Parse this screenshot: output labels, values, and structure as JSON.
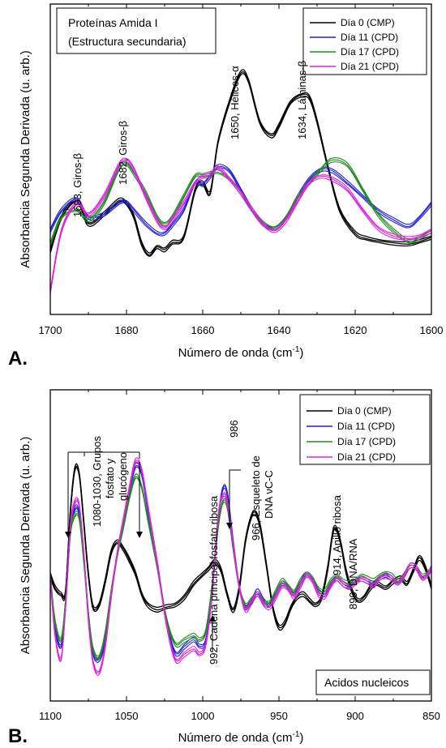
{
  "chart_data": [
    {
      "type": "line",
      "panel": "A.",
      "title_box": [
        "Proteínas Amida I",
        "(Estructura secundaria)"
      ],
      "xlabel": "Número de onda (cm",
      "xlabel_sup": "-1",
      "xlabel_end": ")",
      "ylabel": "Absorbancia Segunda Derivada (u. arb.)",
      "xlim": [
        1700,
        1600
      ],
      "xticks": [
        1700,
        1680,
        1660,
        1640,
        1620,
        1600
      ],
      "ylim": [
        -1,
        1
      ],
      "legend": [
        {
          "name": "Día  0  (CMP)",
          "color": "#000000"
        },
        {
          "name": "Día 11  (CPD)",
          "color": "#1f1fd6"
        },
        {
          "name": "Día 17  (CPD)",
          "color": "#1f8a1f"
        },
        {
          "name": "Día 21  (CPD)",
          "color": "#e020e0"
        }
      ],
      "annotations": [
        {
          "text": "1693, Giros-β",
          "x": 1693,
          "y": 0.1
        },
        {
          "text": "1682, Giros-β",
          "x": 1680,
          "y": 0.4
        },
        {
          "text": "1650, Hélices-α",
          "x": 1650,
          "y": 0.95
        },
        {
          "text": "1634, Láminas-β",
          "x": 1632,
          "y": 0.9
        }
      ],
      "series": [
        {
          "color": "#000000",
          "replicates": 3,
          "x": [
            1700,
            1697,
            1693,
            1690,
            1686,
            1682,
            1680,
            1678,
            1676,
            1674,
            1672,
            1670,
            1668,
            1665,
            1662,
            1660,
            1658,
            1656,
            1653,
            1650,
            1648,
            1645,
            1642,
            1640,
            1637,
            1634,
            1632,
            1630,
            1627,
            1624,
            1620,
            1617,
            1613,
            1610,
            1606,
            1603,
            1600
          ],
          "y": [
            -0.55,
            -0.3,
            -0.18,
            -0.35,
            -0.28,
            -0.18,
            -0.2,
            -0.3,
            -0.5,
            -0.58,
            -0.52,
            -0.54,
            -0.49,
            -0.45,
            -0.1,
            -0.05,
            -0.12,
            0.25,
            0.55,
            0.76,
            0.7,
            0.4,
            0.3,
            0.37,
            0.54,
            0.6,
            0.58,
            0.4,
            0.05,
            -0.25,
            -0.42,
            -0.46,
            -0.48,
            -0.49,
            -0.5,
            -0.48,
            -0.45
          ]
        },
        {
          "color": "#1f1fd6",
          "replicates": 3,
          "x": [
            1700,
            1697,
            1693,
            1690,
            1686,
            1682,
            1680,
            1678,
            1675,
            1672,
            1670,
            1668,
            1665,
            1662,
            1660,
            1658,
            1656,
            1653,
            1650,
            1647,
            1644,
            1641,
            1638,
            1635,
            1632,
            1629,
            1626,
            1622,
            1618,
            1614,
            1610,
            1606,
            1603,
            1600
          ],
          "y": [
            -0.4,
            -0.25,
            -0.17,
            -0.3,
            -0.28,
            -0.2,
            -0.19,
            -0.25,
            -0.35,
            -0.42,
            -0.42,
            -0.36,
            -0.25,
            -0.05,
            -0.06,
            0.0,
            0.07,
            0.04,
            -0.1,
            -0.25,
            -0.36,
            -0.38,
            -0.3,
            -0.15,
            -0.02,
            0.05,
            0.04,
            -0.05,
            -0.15,
            -0.25,
            -0.32,
            -0.37,
            -0.3,
            -0.2
          ]
        },
        {
          "color": "#1f8a1f",
          "replicates": 3,
          "x": [
            1700,
            1697,
            1693,
            1690,
            1686,
            1682,
            1680,
            1678,
            1675,
            1672,
            1670,
            1668,
            1665,
            1662,
            1660,
            1658,
            1656,
            1653,
            1650,
            1647,
            1644,
            1641,
            1638,
            1635,
            1632,
            1629,
            1626,
            1622,
            1618,
            1614,
            1610,
            1606,
            1603,
            1600
          ],
          "y": [
            -0.5,
            -0.3,
            -0.25,
            -0.32,
            -0.2,
            0.05,
            0.09,
            0.02,
            -0.12,
            -0.3,
            -0.35,
            -0.3,
            -0.15,
            0.0,
            0.01,
            0.02,
            0.03,
            -0.02,
            -0.12,
            -0.25,
            -0.35,
            -0.38,
            -0.3,
            -0.15,
            -0.05,
            0.05,
            0.12,
            0.08,
            -0.1,
            -0.28,
            -0.4,
            -0.48,
            -0.45,
            -0.4
          ]
        },
        {
          "color": "#e020e0",
          "replicates": 3,
          "x": [
            1700,
            1697,
            1693,
            1690,
            1686,
            1682,
            1680,
            1678,
            1675,
            1672,
            1670,
            1668,
            1665,
            1662,
            1660,
            1658,
            1656,
            1653,
            1650,
            1647,
            1644,
            1641,
            1638,
            1635,
            1632,
            1629,
            1626,
            1622,
            1618,
            1614,
            1610,
            1606,
            1603,
            1600
          ],
          "y": [
            -0.85,
            -0.4,
            -0.2,
            -0.28,
            -0.15,
            0.08,
            0.12,
            0.05,
            -0.15,
            -0.33,
            -0.38,
            -0.32,
            -0.2,
            -0.05,
            0.0,
            0.01,
            0.06,
            -0.02,
            -0.12,
            -0.25,
            -0.36,
            -0.4,
            -0.32,
            -0.18,
            -0.05,
            0.0,
            -0.02,
            -0.1,
            -0.25,
            -0.38,
            -0.44,
            -0.46,
            -0.44,
            -0.4
          ]
        }
      ]
    },
    {
      "type": "line",
      "panel": "B.",
      "title_box": [
        "Acidos nucleicos"
      ],
      "xlabel": "Número de onda (cm",
      "xlabel_sup": "-1",
      "xlabel_end": ")",
      "ylabel": "Absorbancia Segunda Derivada (u. arb.)",
      "xlim": [
        1100,
        850
      ],
      "xticks": [
        1100,
        1050,
        1000,
        950,
        900,
        850
      ],
      "ylim": [
        -1,
        1
      ],
      "legend": [
        {
          "name": "Día  0   (CMP)",
          "color": "#000000"
        },
        {
          "name": "Día 11   (CPD)",
          "color": "#1f1fd6"
        },
        {
          "name": "Día 17   (CPD)",
          "color": "#1f8a1f"
        },
        {
          "name": "Día 21   (CPD)",
          "color": "#e020e0"
        }
      ],
      "annotations": [
        {
          "text": "1080-1030, Grupos",
          "x": 1058
        },
        {
          "text": "fosfato y",
          "x": 1052
        },
        {
          "text": "glucógeno",
          "x": 1046
        },
        {
          "text": "992, Cadena principal fosfato ribosa",
          "x": 997
        },
        {
          "text": "986",
          "x": 985
        },
        {
          "text": "966, Esqueleto de",
          "x": 967
        },
        {
          "text": "DNA νC-C",
          "x": 960
        },
        {
          "text": "914, Anillo ribosa",
          "x": 912
        },
        {
          "text": "899, DNA/RNA",
          "x": 898
        }
      ],
      "series": [
        {
          "color": "#000000",
          "replicates": 3,
          "x": [
            1100,
            1097,
            1093,
            1090,
            1087,
            1084,
            1081,
            1078,
            1075,
            1072,
            1068,
            1064,
            1060,
            1056,
            1052,
            1048,
            1044,
            1040,
            1036,
            1030,
            1024,
            1018,
            1012,
            1006,
            1000,
            996,
            992,
            988,
            984,
            980,
            976,
            972,
            968,
            965,
            962,
            958,
            954,
            950,
            946,
            942,
            938,
            934,
            930,
            926,
            922,
            918,
            914,
            910,
            906,
            902,
            898,
            894,
            890,
            886,
            880,
            875,
            870,
            866,
            862,
            858,
            854,
            850
          ],
          "y": [
            -0.05,
            -0.15,
            -0.2,
            -0.18,
            0.4,
            0.75,
            0.72,
            0.35,
            -0.05,
            -0.3,
            -0.28,
            -0.1,
            0.12,
            0.2,
            0.15,
            0.06,
            -0.05,
            -0.2,
            -0.28,
            -0.32,
            -0.3,
            -0.28,
            -0.22,
            -0.12,
            -0.05,
            0.0,
            0.05,
            -0.02,
            -0.2,
            -0.32,
            -0.15,
            0.2,
            0.4,
            0.42,
            0.3,
            0.0,
            -0.3,
            -0.45,
            -0.42,
            -0.3,
            -0.22,
            -0.2,
            -0.25,
            -0.28,
            -0.22,
            0.0,
            0.3,
            0.22,
            -0.02,
            -0.18,
            -0.25,
            -0.22,
            -0.15,
            -0.12,
            -0.15,
            -0.1,
            -0.08,
            -0.12,
            -0.02,
            0.08,
            0.0,
            -0.15
          ]
        },
        {
          "color": "#1f1fd6",
          "replicates": 3,
          "x": [
            1100,
            1097,
            1093,
            1090,
            1087,
            1084,
            1081,
            1078,
            1075,
            1072,
            1068,
            1064,
            1060,
            1056,
            1052,
            1048,
            1044,
            1040,
            1036,
            1030,
            1024,
            1018,
            1012,
            1006,
            1002,
            998,
            994,
            990,
            987,
            984,
            980,
            976,
            972,
            968,
            964,
            960,
            956,
            952,
            948,
            944,
            940,
            936,
            932,
            928,
            924,
            920,
            916,
            912,
            908,
            904,
            900,
            896,
            892,
            888,
            884,
            880,
            876,
            872,
            868,
            864,
            860,
            856,
            852,
            850
          ],
          "y": [
            -0.05,
            -0.45,
            -0.6,
            -0.3,
            0.25,
            0.45,
            0.42,
            0.1,
            -0.35,
            -0.65,
            -0.7,
            -0.55,
            -0.2,
            0.1,
            0.35,
            0.6,
            0.78,
            0.72,
            0.45,
            0.05,
            -0.4,
            -0.65,
            -0.6,
            -0.55,
            -0.6,
            -0.55,
            -0.2,
            0.35,
            0.6,
            0.58,
            0.2,
            -0.15,
            -0.3,
            -0.25,
            -0.18,
            -0.25,
            -0.28,
            -0.2,
            -0.12,
            -0.15,
            -0.2,
            -0.12,
            -0.05,
            -0.08,
            -0.18,
            -0.2,
            -0.12,
            -0.08,
            -0.12,
            -0.14,
            -0.1,
            -0.08,
            -0.1,
            -0.12,
            -0.08,
            -0.05,
            -0.08,
            -0.12,
            -0.06,
            0.02,
            0.0,
            -0.08,
            -0.04,
            0.0
          ]
        },
        {
          "color": "#1f8a1f",
          "replicates": 3,
          "x": [
            1100,
            1097,
            1093,
            1090,
            1087,
            1084,
            1081,
            1078,
            1075,
            1072,
            1068,
            1064,
            1060,
            1056,
            1052,
            1048,
            1044,
            1040,
            1036,
            1030,
            1024,
            1018,
            1012,
            1006,
            1002,
            998,
            994,
            990,
            987,
            984,
            980,
            976,
            972,
            968,
            964,
            960,
            956,
            952,
            948,
            944,
            940,
            936,
            932,
            928,
            924,
            920,
            916,
            912,
            908,
            904,
            900,
            896,
            892,
            888,
            884,
            880,
            876,
            872,
            868,
            864,
            860,
            856,
            852,
            850
          ],
          "y": [
            -0.05,
            -0.4,
            -0.55,
            -0.25,
            0.25,
            0.4,
            0.38,
            0.05,
            -0.35,
            -0.62,
            -0.68,
            -0.5,
            -0.18,
            0.1,
            0.32,
            0.55,
            0.7,
            0.62,
            0.38,
            0.02,
            -0.38,
            -0.58,
            -0.55,
            -0.52,
            -0.55,
            -0.48,
            -0.15,
            0.3,
            0.5,
            0.48,
            0.15,
            -0.15,
            -0.28,
            -0.24,
            -0.2,
            -0.26,
            -0.26,
            -0.18,
            -0.1,
            -0.14,
            -0.18,
            -0.1,
            -0.05,
            -0.08,
            -0.16,
            -0.18,
            -0.1,
            -0.06,
            -0.1,
            -0.12,
            -0.1,
            -0.06,
            -0.08,
            -0.1,
            -0.06,
            -0.04,
            -0.06,
            -0.1,
            -0.05,
            0.02,
            0.0,
            -0.06,
            -0.03,
            0.0
          ]
        },
        {
          "color": "#e020e0",
          "replicates": 3,
          "x": [
            1100,
            1097,
            1093,
            1090,
            1087,
            1084,
            1081,
            1078,
            1075,
            1072,
            1068,
            1064,
            1060,
            1056,
            1052,
            1048,
            1044,
            1040,
            1036,
            1030,
            1024,
            1018,
            1012,
            1006,
            1002,
            998,
            994,
            990,
            987,
            984,
            980,
            976,
            972,
            968,
            964,
            960,
            956,
            952,
            948,
            944,
            940,
            936,
            932,
            928,
            924,
            920,
            916,
            912,
            908,
            904,
            900,
            896,
            892,
            888,
            884,
            880,
            876,
            872,
            868,
            864,
            860,
            856,
            852,
            850
          ],
          "y": [
            -0.05,
            -0.5,
            -0.7,
            -0.3,
            0.3,
            0.5,
            0.48,
            0.12,
            -0.4,
            -0.72,
            -0.8,
            -0.6,
            -0.22,
            0.12,
            0.38,
            0.62,
            0.82,
            0.75,
            0.48,
            0.05,
            -0.42,
            -0.7,
            -0.66,
            -0.62,
            -0.66,
            -0.58,
            -0.22,
            0.38,
            0.55,
            0.52,
            0.18,
            -0.15,
            -0.32,
            -0.26,
            -0.2,
            -0.28,
            -0.3,
            -0.22,
            -0.14,
            -0.16,
            -0.22,
            -0.14,
            -0.06,
            -0.1,
            -0.2,
            -0.22,
            -0.14,
            -0.08,
            -0.12,
            -0.15,
            -0.12,
            -0.08,
            -0.1,
            -0.14,
            -0.08,
            -0.06,
            -0.08,
            -0.12,
            -0.06,
            0.02,
            0.0,
            -0.08,
            -0.04,
            0.0
          ]
        }
      ]
    }
  ]
}
